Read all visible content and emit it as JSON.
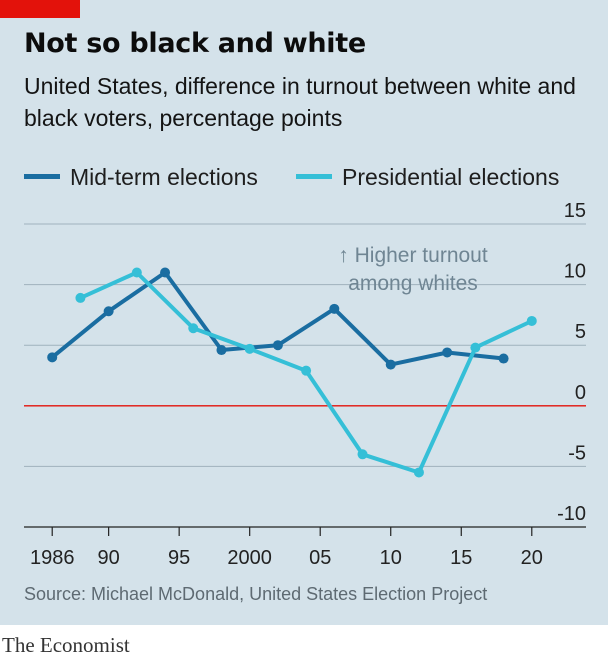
{
  "header": {
    "title": "Not so black and white",
    "subtitle": "United States, difference in turnout between white and black voters, percentage points"
  },
  "chart_data": {
    "type": "line",
    "title": "Not so black and white",
    "subtitle": "United States, difference in turnout between white and black voters, percentage points",
    "x_ticks": [
      "1986",
      "90",
      "95",
      "2000",
      "05",
      "10",
      "15",
      "20"
    ],
    "x_tick_values": [
      1986,
      1990,
      1995,
      2000,
      2005,
      2010,
      2015,
      2020
    ],
    "xlim": [
      1984,
      2022
    ],
    "ylim": [
      -10,
      15
    ],
    "y_ticks": [
      15,
      10,
      5,
      0,
      -5,
      -10
    ],
    "y_axis_side": "right",
    "grid": true,
    "zero_line_color": "#e3120b",
    "annotation": "↑ Higher turnout among whites",
    "legend_position": "top",
    "series": [
      {
        "name": "Mid-term elections",
        "color": "#1a6da1",
        "x": [
          1986,
          1990,
          1994,
          1998,
          2002,
          2006,
          2010,
          2014,
          2018
        ],
        "values": [
          4.0,
          7.8,
          11.0,
          4.6,
          5.0,
          8.0,
          3.4,
          4.4,
          3.9
        ]
      },
      {
        "name": "Presidential elections",
        "color": "#35bfd7",
        "x": [
          1988,
          1992,
          1996,
          2000,
          2004,
          2008,
          2012,
          2016,
          2020
        ],
        "values": [
          8.9,
          11.0,
          6.4,
          4.7,
          2.9,
          -4.0,
          -5.5,
          4.8,
          7.0
        ]
      }
    ]
  },
  "footer": {
    "source": "Source: Michael McDonald, United States Election Project",
    "brand": "The Economist"
  }
}
